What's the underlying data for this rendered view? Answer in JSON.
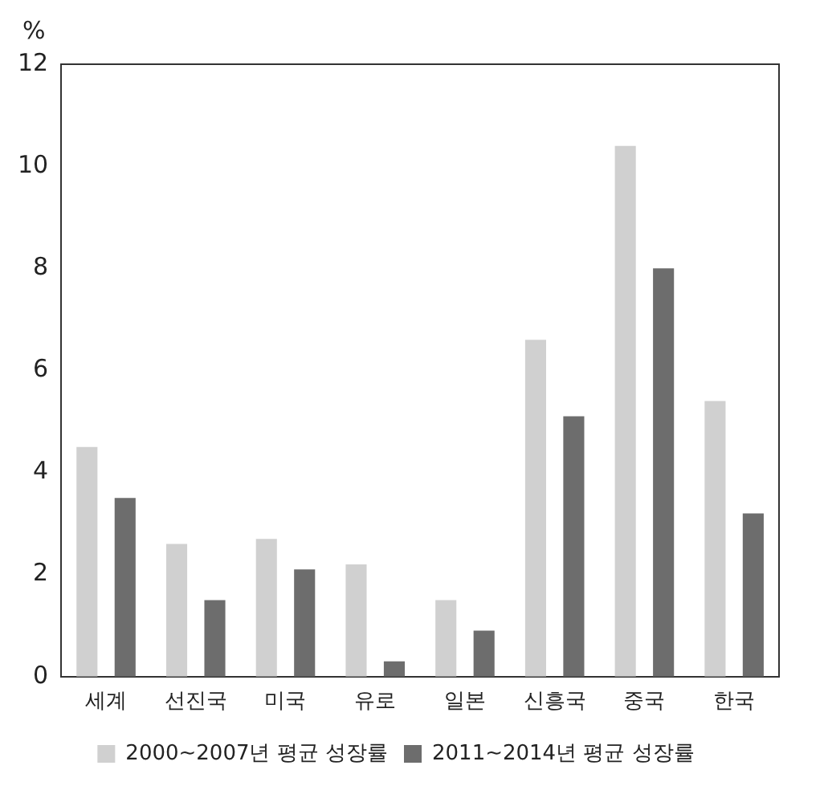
{
  "chart_data": {
    "type": "bar",
    "ylabel": "%",
    "categories": [
      "세계",
      "선진국",
      "미국",
      "유로",
      "일본",
      "신흥국",
      "중국",
      "한국"
    ],
    "series": [
      {
        "name": "2000~2007년 평균 성장률",
        "color": "#d0d0d0",
        "values": [
          4.5,
          2.6,
          2.7,
          2.2,
          1.5,
          6.6,
          10.4,
          5.4
        ]
      },
      {
        "name": "2011~2014년 평균 성장률",
        "color": "#6d6d6d",
        "values": [
          3.5,
          1.5,
          2.1,
          0.3,
          0.9,
          5.1,
          8.0,
          3.2
        ]
      }
    ],
    "ylim": [
      0,
      12
    ],
    "yticks": [
      0,
      2,
      4,
      6,
      8,
      10,
      12
    ],
    "grid": false,
    "legend": "bottom"
  }
}
